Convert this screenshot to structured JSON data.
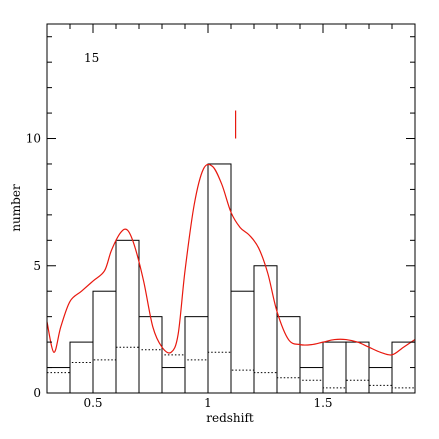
{
  "chart_data": {
    "type": "bar",
    "title": "",
    "annotation": "15",
    "xlabel": "redshift",
    "ylabel": "number",
    "xlim": [
      0.3,
      1.9
    ],
    "ylim": [
      0,
      14.5
    ],
    "xticks": [
      {
        "value": 0.5,
        "label": "0.5"
      },
      {
        "value": 1.0,
        "label": "1"
      },
      {
        "value": 1.5,
        "label": "1.5"
      }
    ],
    "yticks": [
      {
        "value": 0,
        "label": "0"
      },
      {
        "value": 5,
        "label": "5"
      },
      {
        "value": 10,
        "label": "10"
      }
    ],
    "bin_width": 0.1,
    "histogram": {
      "bin_starts": [
        0.3,
        0.4,
        0.5,
        0.6,
        0.7,
        0.8,
        0.9,
        1.0,
        1.1,
        1.2,
        1.3,
        1.4,
        1.5,
        1.6,
        1.7,
        1.8
      ],
      "values": [
        1,
        2,
        4,
        6,
        3,
        1,
        3,
        9,
        4,
        5,
        3,
        1,
        2,
        2,
        1,
        2
      ]
    },
    "expected_dotted": {
      "bin_starts": [
        0.3,
        0.4,
        0.5,
        0.6,
        0.7,
        0.8,
        0.9,
        1.0,
        1.1,
        1.2,
        1.3,
        1.4,
        1.5,
        1.6,
        1.7,
        1.8
      ],
      "values": [
        0.8,
        1.2,
        1.3,
        1.8,
        1.7,
        1.5,
        1.3,
        1.6,
        0.9,
        0.8,
        0.6,
        0.5,
        0.2,
        0.5,
        0.3,
        0.2
      ]
    },
    "smoothed_curve": {
      "color": "#e8190f",
      "x": [
        0.3,
        0.33,
        0.36,
        0.4,
        0.45,
        0.5,
        0.55,
        0.58,
        0.62,
        0.65,
        0.68,
        0.72,
        0.76,
        0.8,
        0.84,
        0.87,
        0.9,
        0.94,
        0.98,
        1.02,
        1.06,
        1.1,
        1.14,
        1.18,
        1.22,
        1.26,
        1.3,
        1.35,
        1.4,
        1.45,
        1.5,
        1.55,
        1.6,
        1.65,
        1.7,
        1.75,
        1.8,
        1.85,
        1.9
      ],
      "y": [
        2.8,
        1.6,
        2.6,
        3.6,
        4.0,
        4.4,
        4.8,
        5.6,
        6.3,
        6.4,
        5.8,
        4.4,
        2.6,
        1.8,
        1.6,
        2.3,
        4.8,
        7.4,
        8.8,
        8.9,
        8.2,
        7.1,
        6.5,
        6.2,
        5.7,
        4.7,
        3.2,
        2.1,
        1.9,
        1.9,
        2.0,
        2.1,
        2.1,
        2.0,
        1.8,
        1.6,
        1.5,
        1.8,
        2.1
      ]
    },
    "marker": {
      "x": 1.12,
      "y_from": 10.0,
      "y_to": 11.1,
      "color": "#e8190f"
    },
    "grid": false,
    "legend": "none"
  }
}
